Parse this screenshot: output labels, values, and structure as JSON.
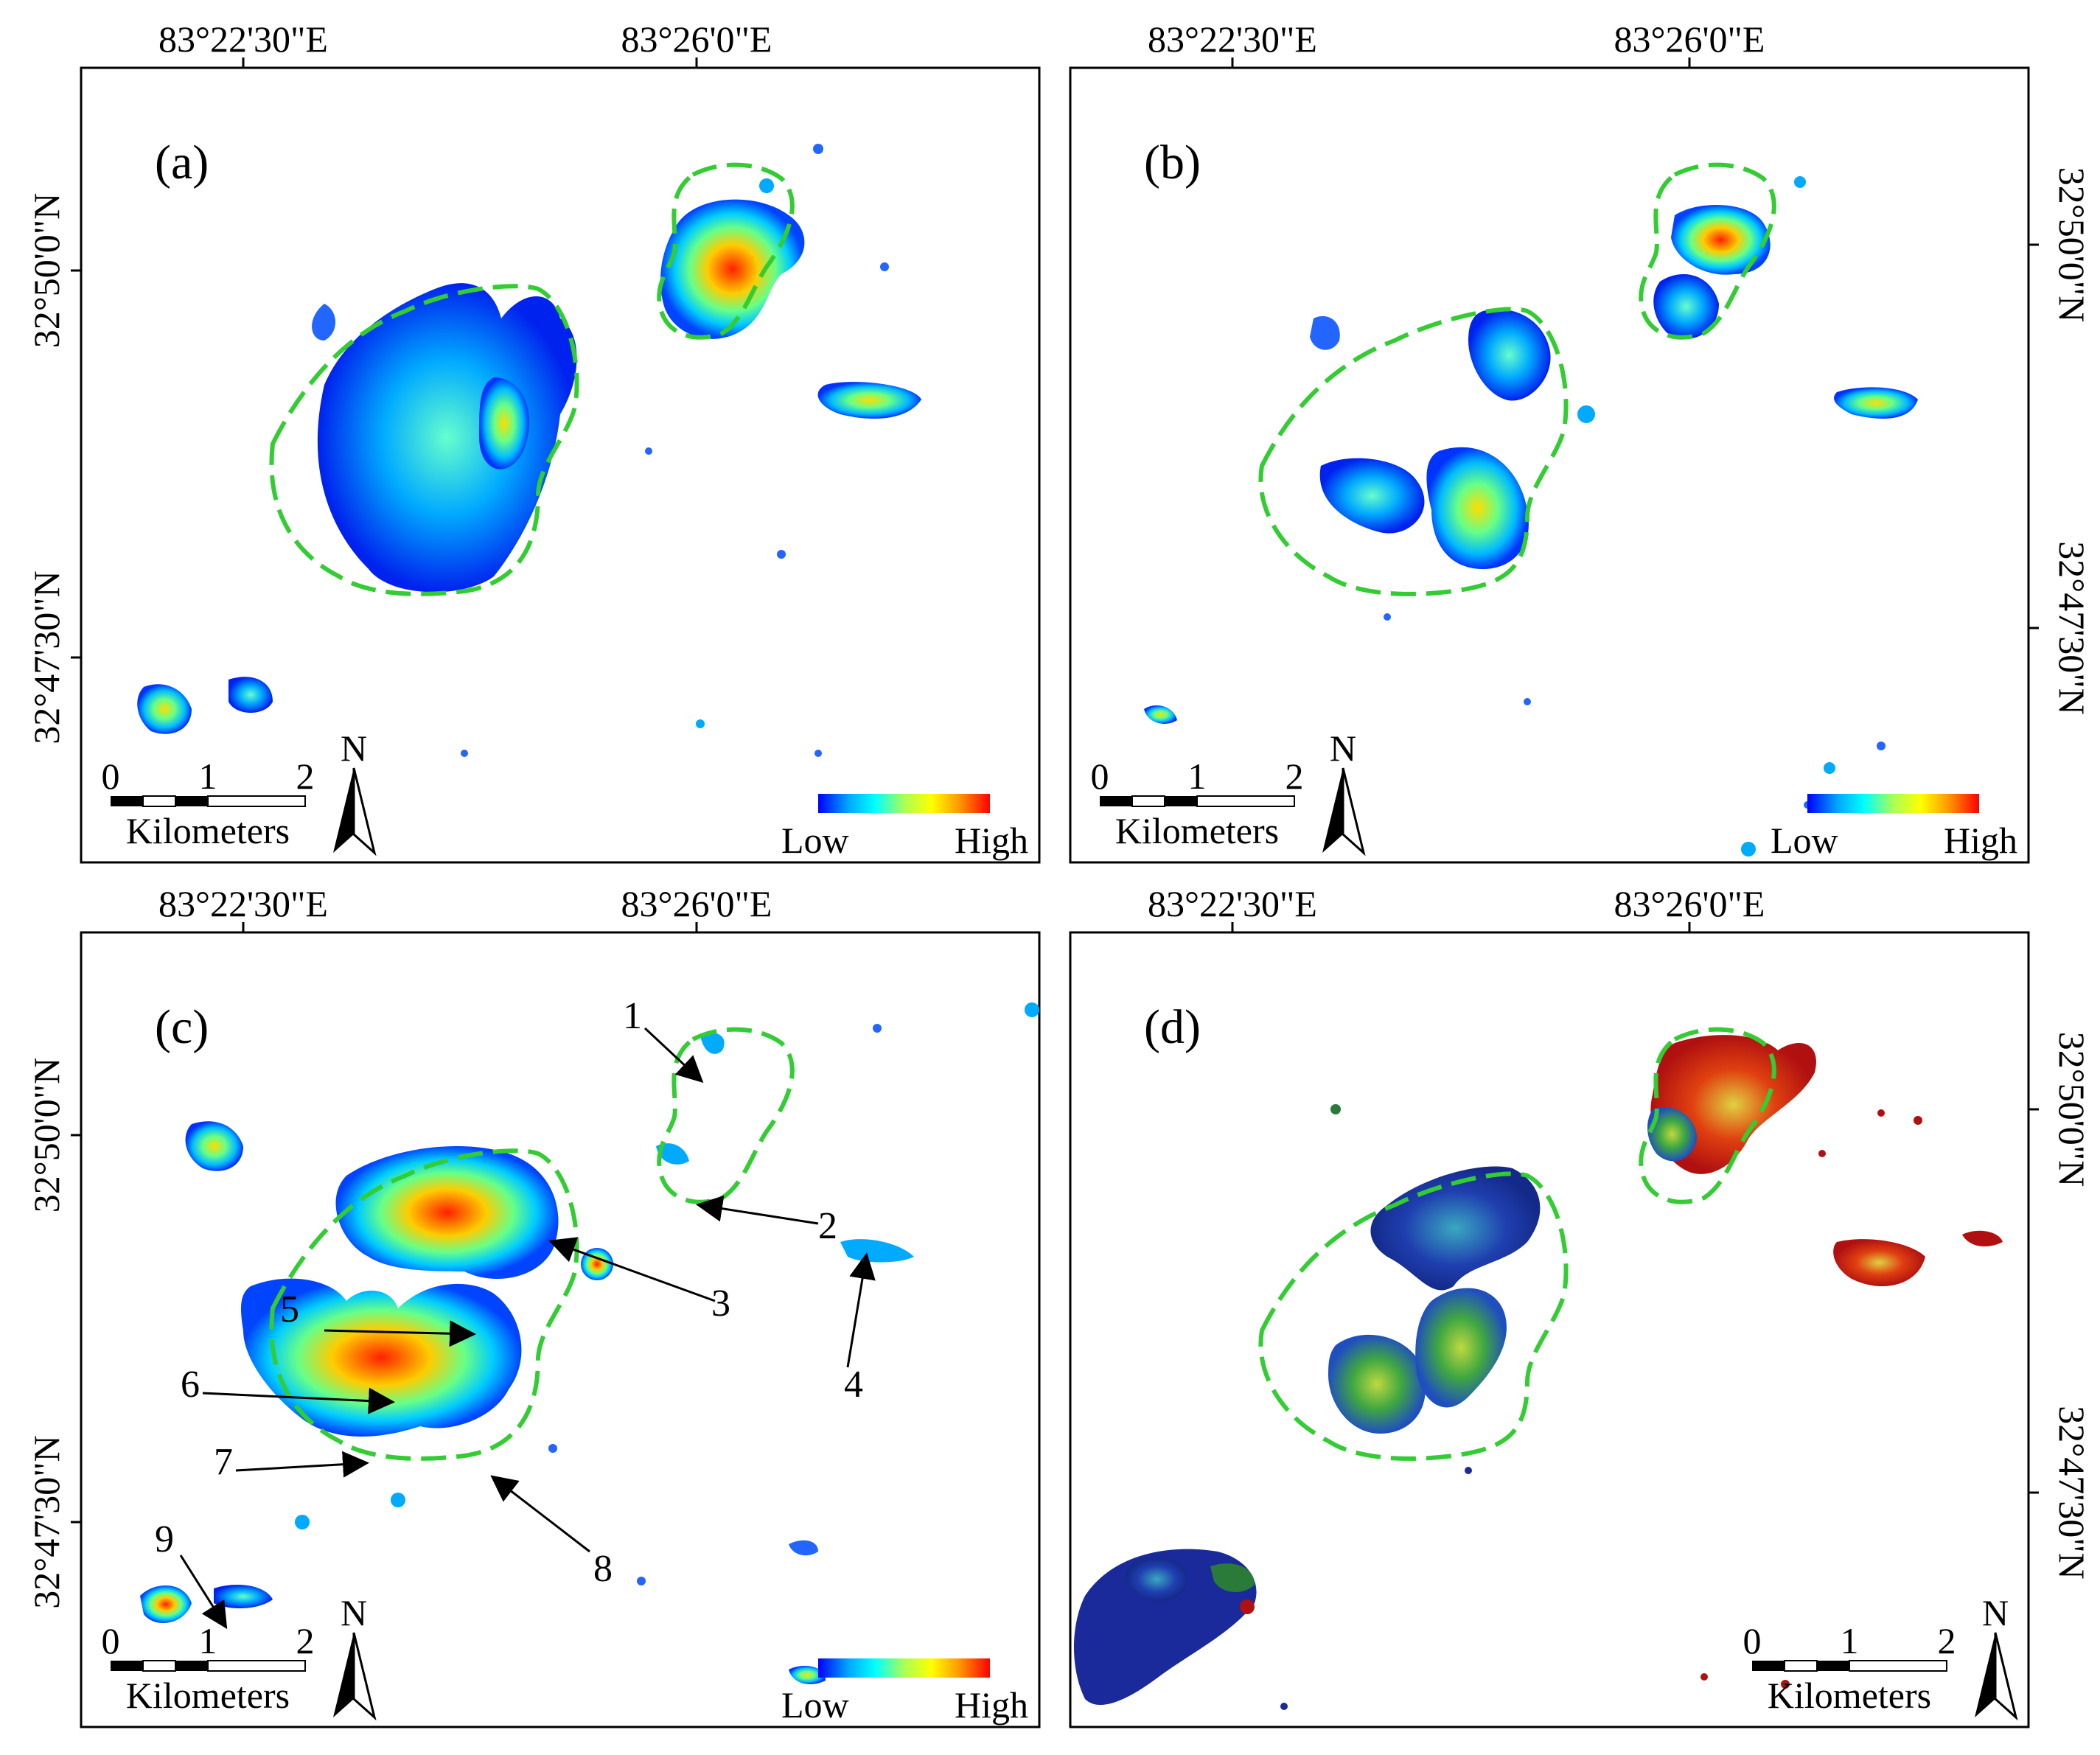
{
  "figure": {
    "colors": {
      "frame": "#000000",
      "study_area_outline": "#33cc33",
      "ramp": [
        "#0000ff",
        "#00aaff",
        "#00ffff",
        "#aaff55",
        "#ffff00",
        "#ff9900",
        "#ff0000"
      ],
      "panel_d_ramp": [
        "#1a2a9a",
        "#2255cc",
        "#2a9a3a",
        "#7ac040",
        "#e0d040",
        "#dd3010",
        "#b01010"
      ]
    },
    "panels": [
      {
        "label": "(a)",
        "top_ticks": [
          "83°22'30\"E",
          "83°26'0\"E"
        ],
        "left_ticks": [
          "32°50'0\"N",
          "32°47'30\"N"
        ],
        "scale_bar": {
          "numbers": [
            "0",
            "1",
            "2"
          ],
          "unit": "Kilometers"
        },
        "north_arrow": "N",
        "legend": {
          "low": "Low",
          "high": "High"
        }
      },
      {
        "label": "(b)",
        "top_ticks": [
          "83°22'30\"E",
          "83°26'0\"E"
        ],
        "right_ticks": [
          "32°50'0\"N",
          "32°47'30\"N"
        ],
        "scale_bar": {
          "numbers": [
            "0",
            "1",
            "2"
          ],
          "unit": "Kilometers"
        },
        "north_arrow": "N",
        "legend": {
          "low": "Low",
          "high": "High"
        }
      },
      {
        "label": "(c)",
        "top_ticks": [
          "83°22'30\"E",
          "83°26'0\"E"
        ],
        "left_ticks": [
          "32°50'0\"N",
          "32°47'30\"N"
        ],
        "scale_bar": {
          "numbers": [
            "0",
            "1",
            "2"
          ],
          "unit": "Kilometers"
        },
        "north_arrow": "N",
        "legend": {
          "low": "Low",
          "high": "High"
        },
        "callouts": [
          "1",
          "2",
          "3",
          "4",
          "5",
          "6",
          "7",
          "8",
          "9"
        ]
      },
      {
        "label": "(d)",
        "top_ticks": [
          "83°22'30\"E",
          "83°26'0\"E"
        ],
        "right_ticks": [
          "32°50'0\"N",
          "32°47'30\"N"
        ],
        "scale_bar": {
          "numbers": [
            "0",
            "1",
            "2"
          ],
          "unit": "Kilometers"
        },
        "north_arrow": "N"
      }
    ]
  }
}
